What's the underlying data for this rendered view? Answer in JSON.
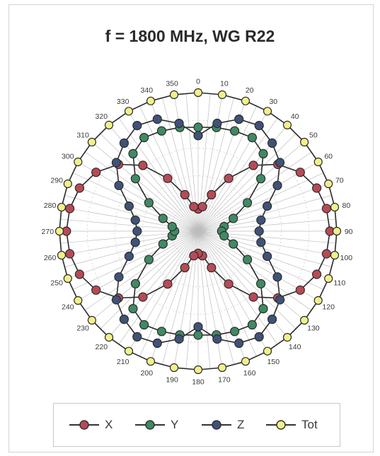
{
  "chart_data": {
    "type": "polar-line",
    "title": "f = 1800 MHz, WG R22",
    "angle_ticks": [
      0,
      10,
      20,
      30,
      40,
      50,
      60,
      70,
      80,
      90,
      100,
      110,
      120,
      130,
      140,
      150,
      160,
      170,
      180,
      190,
      200,
      210,
      220,
      230,
      240,
      250,
      260,
      270,
      280,
      290,
      300,
      310,
      320,
      330,
      340,
      350
    ],
    "angle_tick_labels": [
      "0",
      "10",
      "20",
      "30",
      "40",
      "50",
      "60",
      "70",
      "80",
      "90",
      "100",
      "110",
      "120",
      "130",
      "140",
      "150",
      "160",
      "170",
      "180",
      "190",
      "200",
      "210",
      "220",
      "230",
      "240",
      "250",
      "260",
      "270",
      "280",
      "290",
      "300",
      "310",
      "320",
      "330",
      "340",
      "350"
    ],
    "radial_max": 1.0,
    "grid": true,
    "legend_position": "bottom",
    "series": [
      {
        "name": "X",
        "color": "#b84a55",
        "angles": [
          0,
          10,
          20,
          30,
          40,
          50,
          60,
          70,
          80,
          90,
          100,
          110,
          120,
          130,
          140,
          150,
          160,
          170,
          180,
          190,
          200,
          210,
          220,
          230,
          240,
          250,
          260,
          270,
          280,
          290,
          300,
          310,
          320,
          330,
          340,
          350
        ],
        "values": [
          0.16,
          0.18,
          0.28,
          0.44,
          0.62,
          0.75,
          0.85,
          0.91,
          0.94,
          0.95,
          0.94,
          0.91,
          0.85,
          0.75,
          0.62,
          0.44,
          0.28,
          0.18,
          0.16,
          0.18,
          0.28,
          0.44,
          0.62,
          0.75,
          0.85,
          0.91,
          0.94,
          0.95,
          0.94,
          0.91,
          0.85,
          0.75,
          0.62,
          0.44,
          0.28,
          0.18
        ]
      },
      {
        "name": "Y",
        "color": "#3f8a63",
        "angles": [
          0,
          10,
          20,
          30,
          40,
          50,
          60,
          70,
          80,
          90,
          100,
          110,
          120,
          130,
          140,
          150,
          160,
          170,
          180,
          190,
          200,
          210,
          220,
          230,
          240,
          250,
          260,
          270,
          280,
          290,
          300,
          310,
          320,
          330,
          340,
          350
        ],
        "values": [
          0.75,
          0.76,
          0.77,
          0.78,
          0.73,
          0.59,
          0.41,
          0.27,
          0.19,
          0.17,
          0.19,
          0.27,
          0.41,
          0.59,
          0.73,
          0.78,
          0.77,
          0.76,
          0.75,
          0.76,
          0.77,
          0.78,
          0.73,
          0.59,
          0.41,
          0.27,
          0.19,
          0.17,
          0.19,
          0.27,
          0.41,
          0.59,
          0.73,
          0.78,
          0.77,
          0.76
        ]
      },
      {
        "name": "Z",
        "color": "#3f5278",
        "angles": [
          0,
          10,
          20,
          30,
          40,
          50,
          60,
          70,
          80,
          90,
          100,
          110,
          120,
          130,
          140,
          150,
          160,
          170,
          180,
          190,
          200,
          210,
          220,
          230,
          240,
          250,
          260,
          270,
          280,
          290,
          300,
          310,
          320,
          330,
          340,
          350
        ],
        "values": [
          0.69,
          0.79,
          0.86,
          0.88,
          0.83,
          0.77,
          0.66,
          0.53,
          0.46,
          0.44,
          0.46,
          0.53,
          0.66,
          0.77,
          0.83,
          0.88,
          0.86,
          0.79,
          0.69,
          0.79,
          0.86,
          0.88,
          0.83,
          0.77,
          0.66,
          0.53,
          0.46,
          0.44,
          0.46,
          0.53,
          0.66,
          0.77,
          0.83,
          0.88,
          0.86,
          0.79
        ]
      },
      {
        "name": "Tot",
        "color": "#f2f08a",
        "angles": [
          0,
          10,
          20,
          30,
          40,
          50,
          60,
          70,
          80,
          90,
          100,
          110,
          120,
          130,
          140,
          150,
          160,
          170,
          180,
          190,
          200,
          210,
          220,
          230,
          240,
          250,
          260,
          270,
          280,
          290,
          300,
          310,
          320,
          330,
          340,
          350
        ],
        "values": [
          1.0,
          1.0,
          1.0,
          1.0,
          1.0,
          1.0,
          1.0,
          1.0,
          1.0,
          1.0,
          1.0,
          1.0,
          1.0,
          1.0,
          1.0,
          1.0,
          1.0,
          1.0,
          1.0,
          1.0,
          1.0,
          1.0,
          1.0,
          1.0,
          1.0,
          1.0,
          1.0,
          1.0,
          1.0,
          1.0,
          1.0,
          1.0,
          1.0,
          1.0,
          1.0,
          1.0
        ]
      }
    ]
  },
  "legend": {
    "items": [
      {
        "label": "X",
        "color": "#b84a55"
      },
      {
        "label": "Y",
        "color": "#3f8a63"
      },
      {
        "label": "Z",
        "color": "#3f5278"
      },
      {
        "label": "Tot",
        "color": "#f2f08a"
      }
    ]
  }
}
